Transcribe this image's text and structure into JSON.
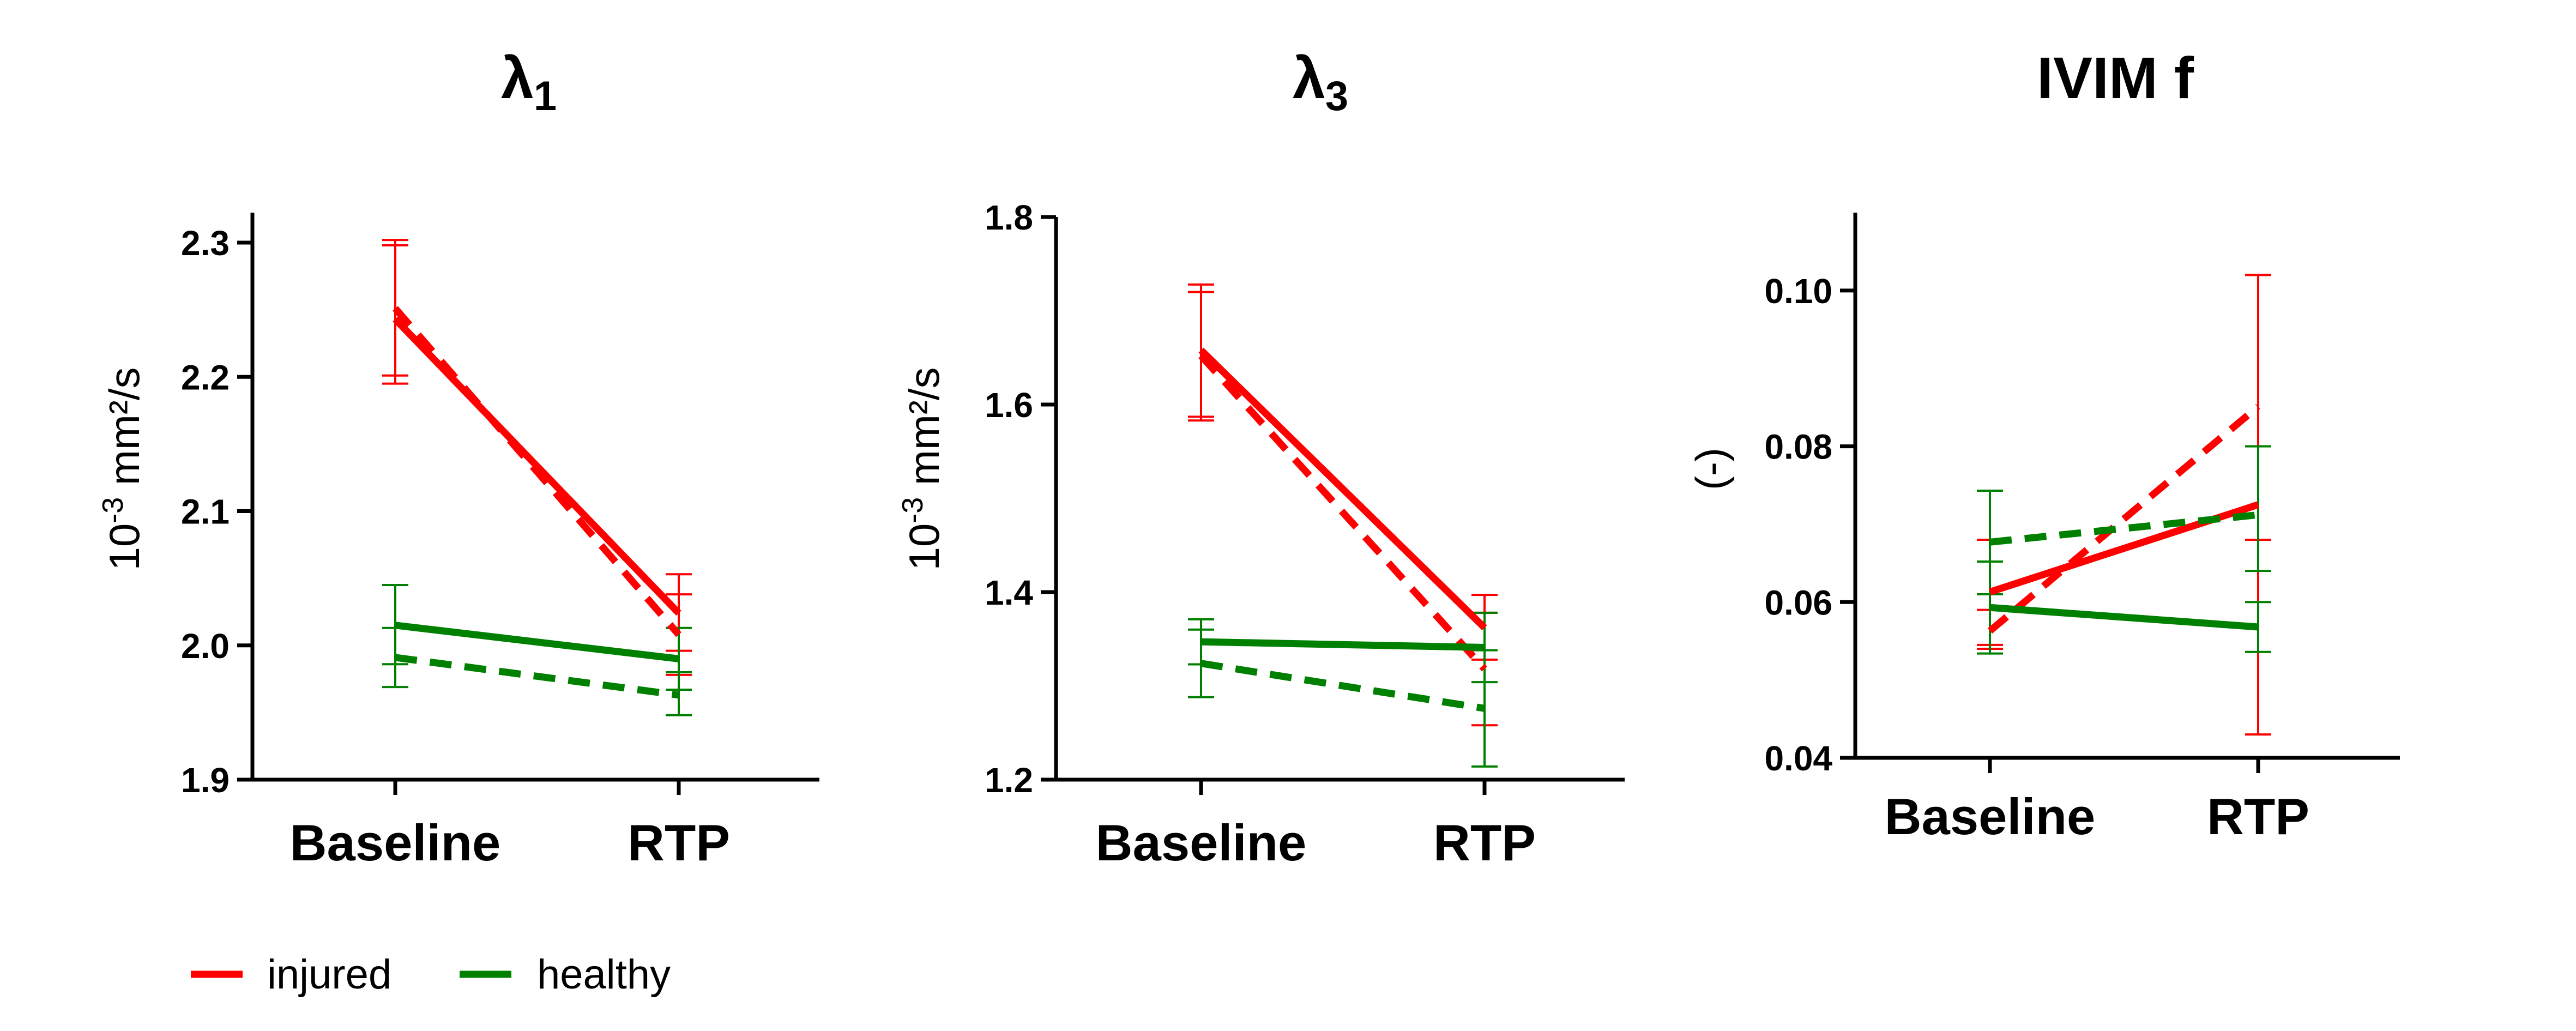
{
  "legend": [
    {
      "label": "injured",
      "color": "#ff0000"
    },
    {
      "label": "healthy",
      "color": "#008000"
    }
  ],
  "chart_data": [
    {
      "type": "line",
      "title_main": "λ",
      "title_sub": "1",
      "ylabel_main": "10",
      "ylabel_sup": "-3",
      "ylabel_rest": " mm²/s",
      "categories": [
        "Baseline",
        "RTP"
      ],
      "ylim": [
        1.9,
        2.3
      ],
      "yticks": [
        "1.9",
        "2.0",
        "2.1",
        "2.2",
        "2.3"
      ],
      "series": [
        {
          "name": "injured",
          "style": "solid",
          "color": "#ff0000",
          "values": [
            2.243,
            2.024
          ],
          "err": [
            [
              2.195,
              2.298
            ],
            [
              1.996,
              2.053
            ]
          ]
        },
        {
          "name": "injured",
          "style": "dashed",
          "color": "#ff0000",
          "values": [
            2.251,
            2.008
          ],
          "err": [
            [
              2.201,
              2.302
            ],
            [
              1.978,
              2.038
            ]
          ]
        },
        {
          "name": "healthy",
          "style": "solid",
          "color": "#008000",
          "values": [
            2.015,
            1.99
          ],
          "err": [
            [
              1.986,
              2.045
            ],
            [
              1.967,
              2.013
            ]
          ]
        },
        {
          "name": "healthy",
          "style": "dashed",
          "color": "#008000",
          "values": [
            1.991,
            1.963
          ],
          "err": [
            [
              1.969,
              2.013
            ],
            [
              1.948,
              1.98
            ]
          ]
        }
      ]
    },
    {
      "type": "line",
      "title_main": "λ",
      "title_sub": "3",
      "ylabel_main": "10",
      "ylabel_sup": "-3",
      "ylabel_rest": " mm²/s",
      "categories": [
        "Baseline",
        "RTP"
      ],
      "ylim": [
        1.2,
        1.8
      ],
      "yticks": [
        "1.2",
        "1.4",
        "1.6",
        "1.8"
      ],
      "series": [
        {
          "name": "injured",
          "style": "solid",
          "color": "#ff0000",
          "values": [
            1.658,
            1.362
          ],
          "err": [
            [
              1.587,
              1.728
            ],
            [
              1.328,
              1.397
            ]
          ]
        },
        {
          "name": "injured",
          "style": "dashed",
          "color": "#ff0000",
          "values": [
            1.652,
            1.318
          ],
          "err": [
            [
              1.583,
              1.72
            ],
            [
              1.258,
              1.378
            ]
          ]
        },
        {
          "name": "healthy",
          "style": "solid",
          "color": "#008000",
          "values": [
            1.347,
            1.341
          ],
          "err": [
            [
              1.323,
              1.371
            ],
            [
              1.304,
              1.378
            ]
          ]
        },
        {
          "name": "healthy",
          "style": "dashed",
          "color": "#008000",
          "values": [
            1.324,
            1.276
          ],
          "err": [
            [
              1.288,
              1.36
            ],
            [
              1.214,
              1.338
            ]
          ]
        }
      ]
    },
    {
      "type": "line",
      "title_main": "IVIM f",
      "title_sub": "",
      "ylabel_main": "(-)",
      "ylabel_sup": "",
      "ylabel_rest": "",
      "categories": [
        "Baseline",
        "RTP"
      ],
      "ylim": [
        0.04,
        0.11
      ],
      "yticks": [
        "0.04",
        "0.06",
        "0.08",
        "0.10"
      ],
      "series": [
        {
          "name": "injured",
          "style": "solid",
          "color": "#ff0000",
          "values": [
            0.0613,
            0.0725
          ],
          "err": [
            [
              0.0545,
              0.068
            ],
            [
              0.043,
              0.102
            ]
          ]
        },
        {
          "name": "injured",
          "style": "dashed",
          "color": "#ff0000",
          "values": [
            0.0563,
            0.0851
          ],
          "err": [
            [
              0.054,
              0.059
            ],
            [
              0.068,
              0.102
            ]
          ]
        },
        {
          "name": "healthy",
          "style": "solid",
          "color": "#008000",
          "values": [
            0.0593,
            0.0568
          ],
          "err": [
            [
              0.0534,
              0.0652
            ],
            [
              0.0536,
              0.06
            ]
          ]
        },
        {
          "name": "healthy",
          "style": "dashed",
          "color": "#008000",
          "values": [
            0.0677,
            0.0712
          ],
          "err": [
            [
              0.061,
              0.0743
            ],
            [
              0.064,
              0.08
            ]
          ]
        }
      ]
    }
  ]
}
